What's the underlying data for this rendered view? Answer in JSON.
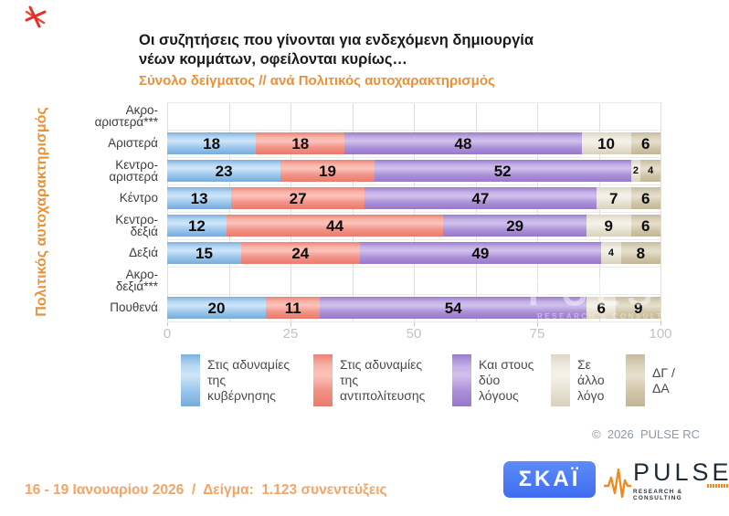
{
  "title": {
    "line1": "Οι συζητήσεις που γίνονται για ενδεχόμενη δημιουργία",
    "line2": "νέων κομμάτων, οφείλονται κυρίως…",
    "subtitle": "Σύνολο δείγματος // ανά Πολιτικός αυτοχαρακτηρισμός"
  },
  "y_axis_title": "Πολιτικός αυτοχαρακτηρισμός",
  "chart_data": {
    "type": "bar",
    "stacked": true,
    "orientation": "horizontal",
    "xlim": [
      0,
      100
    ],
    "x_ticks": [
      "0",
      "25",
      "50",
      "75",
      "100"
    ],
    "grid": "vertical gridlines every 12.5",
    "legend_position": "bottom",
    "series": [
      {
        "name": "Στις αδυναμίες της κυβέρνησης",
        "color": "#9cc7ec"
      },
      {
        "name": "Στις αδυναμίες της αντιπολίτευσης",
        "color": "#f29287"
      },
      {
        "name": "Και στους δύο λόγους",
        "color": "#ab90d7"
      },
      {
        "name": "Σε άλλο λόγο",
        "color": "#e9e4d5"
      },
      {
        "name": "ΔΓ / ΔΑ",
        "color": "#d2c8ad"
      }
    ],
    "rows": [
      {
        "category": "Ακρο-αριστερά***",
        "label_lines": [
          "Ακρο-",
          "αριστερά***"
        ],
        "values": []
      },
      {
        "category": "Αριστερά",
        "label_lines": [
          "Αριστερά"
        ],
        "values": [
          18,
          18,
          48,
          10,
          6
        ]
      },
      {
        "category": "Κεντρο-αριστερά",
        "label_lines": [
          "Κεντρο-",
          "αριστερά"
        ],
        "values": [
          23,
          19,
          52,
          2,
          4
        ]
      },
      {
        "category": "Κέντρο",
        "label_lines": [
          "Κέντρο"
        ],
        "values": [
          13,
          27,
          47,
          7,
          6
        ]
      },
      {
        "category": "Κεντρο-δεξιά",
        "label_lines": [
          "Κεντρο-",
          "δεξιά"
        ],
        "values": [
          12,
          44,
          29,
          9,
          6
        ]
      },
      {
        "category": "Δεξιά",
        "label_lines": [
          "Δεξιά"
        ],
        "values": [
          15,
          24,
          49,
          4,
          8
        ]
      },
      {
        "category": "Ακρο-δεξιά***",
        "label_lines": [
          "Ακρο-",
          "δεξιά***"
        ],
        "values": []
      },
      {
        "category": "Πουθενά",
        "label_lines": [
          "Πουθενά"
        ],
        "values": [
          20,
          11,
          54,
          6,
          9
        ]
      }
    ]
  },
  "legend": {
    "items": [
      {
        "label_lines": [
          "Στις αδυναμίες",
          "της",
          "κυβέρνησης"
        ]
      },
      {
        "label_lines": [
          "Στις αδυναμίες",
          "της",
          "αντιπολίτευσης"
        ]
      },
      {
        "label_lines": [
          "Και στους",
          "δύο",
          "λόγους"
        ]
      },
      {
        "label_lines": [
          "Σε",
          "άλλο",
          "λόγο"
        ]
      },
      {
        "label_lines": [
          "ΔΓ /",
          "ΔΑ"
        ]
      }
    ]
  },
  "watermark": {
    "line1": "PULSE",
    "line2": "RESEARCH & CONSULTING"
  },
  "copyright": "©  2026  PULSE RC",
  "footer": "16 - 19 Ιανουαρίου 2026  /  Δείγμα:  1.123 συνεντεύξεις",
  "logos": {
    "skai_text": "ΣΚΑΪ",
    "pulse_name": "PULSE",
    "pulse_tagline": "RESEARCH & CONSULTING"
  },
  "colors": {
    "accent_orange": "#ea9138",
    "footer_orange": "#f4a466",
    "axis_gray": "#c2c2c2",
    "skai_blue": "#4577f0",
    "scribble_red": "#e63226"
  }
}
